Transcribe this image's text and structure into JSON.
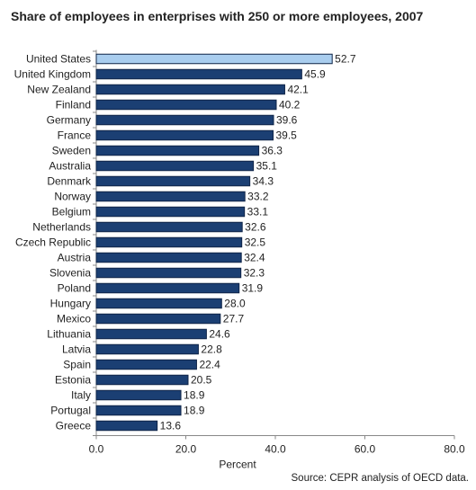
{
  "chart_data": {
    "type": "bar",
    "orientation": "horizontal",
    "title": "Share of employees in enterprises with 250 or more employees, 2007",
    "xlabel": "Percent",
    "ylabel": "",
    "xlim": [
      0,
      80
    ],
    "x_ticks": [
      "0.0",
      "20.0",
      "40.0",
      "60.0",
      "80.0"
    ],
    "categories": [
      "United States",
      "United Kingdom",
      "New Zealand",
      "Finland",
      "Germany",
      "France",
      "Sweden",
      "Australia",
      "Denmark",
      "Norway",
      "Belgium",
      "Netherlands",
      "Czech Republic",
      "Austria",
      "Slovenia",
      "Poland",
      "Hungary",
      "Mexico",
      "Lithuania",
      "Latvia",
      "Spain",
      "Estonia",
      "Italy",
      "Portugal",
      "Greece"
    ],
    "values": [
      52.7,
      45.9,
      42.1,
      40.2,
      39.6,
      39.5,
      36.3,
      35.1,
      34.3,
      33.2,
      33.1,
      32.6,
      32.5,
      32.4,
      32.3,
      31.9,
      28.0,
      27.7,
      24.6,
      22.8,
      22.4,
      20.5,
      18.9,
      18.9,
      13.6
    ],
    "value_labels": [
      "52.7",
      "45.9",
      "42.1",
      "40.2",
      "39.6",
      "39.5",
      "36.3",
      "35.1",
      "34.3",
      "33.2",
      "33.1",
      "32.6",
      "32.5",
      "32.4",
      "32.3",
      "31.9",
      "28.0",
      "27.7",
      "24.6",
      "22.8",
      "22.4",
      "20.5",
      "18.9",
      "18.9",
      "13.6"
    ],
    "highlight_category": "United States",
    "colors": {
      "bar": "#1b3f73",
      "highlight": "#a9cdee",
      "outline": "#0f2447",
      "axis": "#888888"
    },
    "grid": false,
    "legend": "none",
    "source": "Source: CEPR analysis of OECD data."
  }
}
